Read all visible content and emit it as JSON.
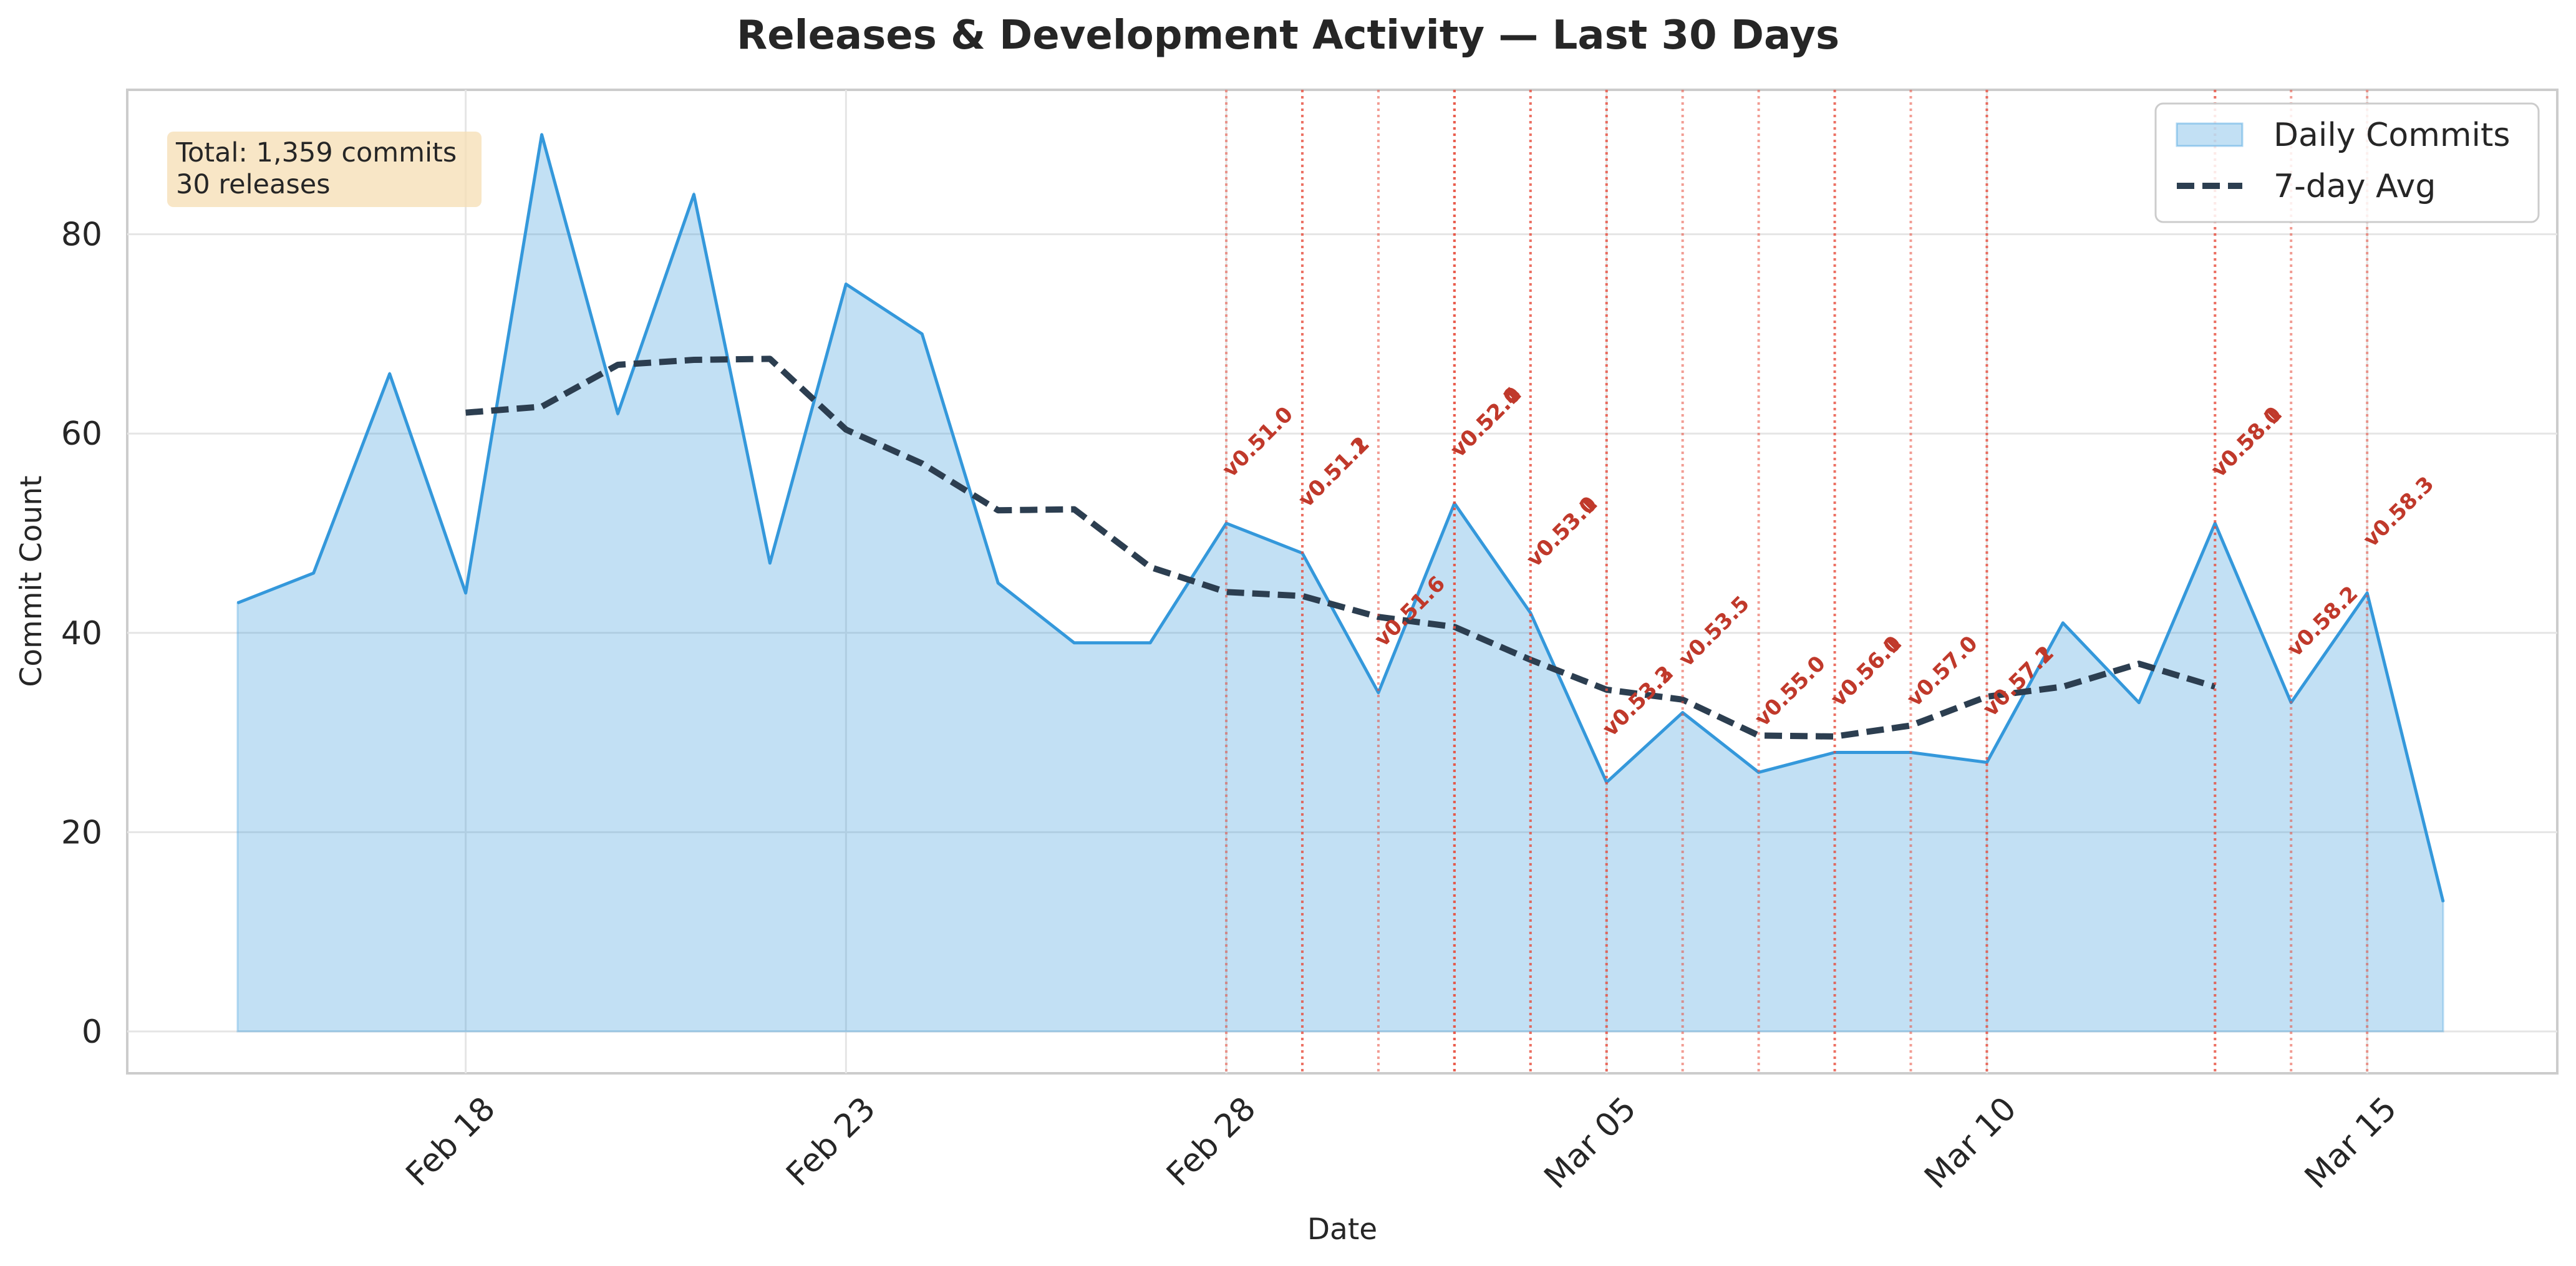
{
  "chart_data": {
    "type": "area",
    "title": "Releases & Development Activity — Last 30 Days",
    "xlabel": "Date",
    "ylabel": "Commit Count",
    "ylim": [
      -4.2,
      94.5
    ],
    "yticks": [
      0,
      20,
      40,
      60,
      80
    ],
    "xticks": [
      {
        "day": 3,
        "label": "Feb 18"
      },
      {
        "day": 8,
        "label": "Feb 23"
      },
      {
        "day": 13,
        "label": "Feb 28"
      },
      {
        "day": 18,
        "label": "Mar 05"
      },
      {
        "day": 23,
        "label": "Mar 10"
      },
      {
        "day": 28,
        "label": "Mar 15"
      }
    ],
    "xlim": [
      -1.45,
      30.5
    ],
    "grid": true,
    "start_date": "Feb 15",
    "series": [
      {
        "name": "Daily Commits",
        "kind": "area",
        "color": "#3498db",
        "x": [
          0,
          1,
          2,
          3,
          4,
          5,
          6,
          7,
          8,
          9,
          10,
          11,
          12,
          13,
          14,
          15,
          16,
          17,
          18,
          19,
          20,
          21,
          22,
          23,
          24,
          25,
          26,
          27,
          28,
          29
        ],
        "values": [
          43,
          46,
          66,
          44,
          90,
          62,
          84,
          47,
          75,
          70,
          45,
          39,
          39,
          51,
          48,
          34,
          53,
          42,
          25,
          32,
          26,
          28,
          28,
          27,
          41,
          33,
          51,
          33,
          44,
          13
        ]
      },
      {
        "name": "7-day Avg",
        "kind": "line",
        "color": "#2c3e50",
        "x": [
          3,
          4,
          5,
          6,
          7,
          8,
          9,
          10,
          11,
          12,
          13,
          14,
          15,
          16,
          17,
          18,
          19,
          20,
          21,
          22,
          23,
          24,
          25,
          26
        ],
        "values": [
          62.1,
          62.7,
          66.9,
          67.4,
          67.5,
          60.4,
          57.0,
          52.3,
          52.4,
          46.6,
          44.1,
          43.7,
          41.6,
          40.6,
          37.3,
          34.3,
          33.3,
          29.7,
          29.6,
          30.7,
          33.6,
          34.6,
          36.9,
          34.6
        ]
      }
    ],
    "releases": [
      {
        "label": "v0.51.0",
        "day": 13,
        "y": 55.5
      },
      {
        "label": "v0.51.1",
        "day": 14,
        "y": 52.5
      },
      {
        "label": "v0.51.2",
        "day": 14,
        "y": 52.5
      },
      {
        "label": "v0.51.6",
        "day": 15,
        "y": 38.5
      },
      {
        "label": "v0.52.0",
        "day": 16,
        "y": 57.5
      },
      {
        "label": "v0.52.1",
        "day": 16,
        "y": 57.5
      },
      {
        "label": "v0.52.4",
        "day": 16,
        "y": 57.5
      },
      {
        "label": "v0.53.0",
        "day": 17,
        "y": 46.5
      },
      {
        "label": "v0.53.1",
        "day": 17,
        "y": 46.5
      },
      {
        "label": "v0.53.2",
        "day": 18,
        "y": 29.5
      },
      {
        "label": "v0.53.3",
        "day": 18,
        "y": 29.5
      },
      {
        "label": "v0.53.5",
        "day": 19,
        "y": 36.5
      },
      {
        "label": "v0.55.0",
        "day": 20,
        "y": 30.5
      },
      {
        "label": "v0.56.0",
        "day": 21,
        "y": 32.5
      },
      {
        "label": "v0.56.1",
        "day": 21,
        "y": 32.5
      },
      {
        "label": "v0.57.0",
        "day": 22,
        "y": 32.5
      },
      {
        "label": "v0.57.1",
        "day": 23,
        "y": 31.5
      },
      {
        "label": "v0.57.2",
        "day": 23,
        "y": 31.5
      },
      {
        "label": "v0.58.0",
        "day": 26,
        "y": 55.5
      },
      {
        "label": "v0.58.1",
        "day": 26,
        "y": 55.5
      },
      {
        "label": "v0.58.2",
        "day": 27,
        "y": 37.5
      },
      {
        "label": "v0.58.3",
        "day": 28,
        "y": 48.5
      }
    ],
    "stats_box": {
      "lines": [
        "Total: 1,359 commits",
        "30 releases"
      ],
      "placement": "top-left"
    },
    "legend": {
      "placement": "top-right",
      "entries": [
        "Daily Commits",
        "7-day Avg"
      ]
    },
    "colors": {
      "area_fill": "#3498db",
      "line": "#3498db",
      "avg": "#2c3e50",
      "release": "#e74c3c",
      "release_text": "#c0392b",
      "stats_bg": "#f5deb3"
    }
  }
}
